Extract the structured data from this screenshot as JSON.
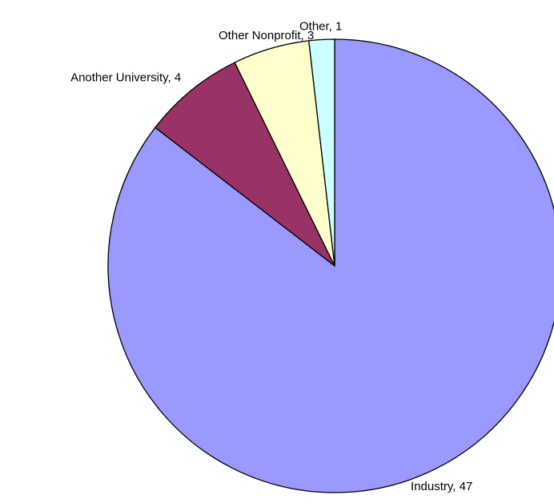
{
  "chart_data": {
    "type": "pie",
    "values": [
      47,
      4,
      3,
      1
    ],
    "value_labels": [
      "Industry, 47",
      "Another University, 4",
      "Other Nonprofit, 3",
      "Other, 1"
    ],
    "colors": [
      "#9999ff",
      "#993366",
      "#ffffcc",
      "#ccffff"
    ]
  }
}
